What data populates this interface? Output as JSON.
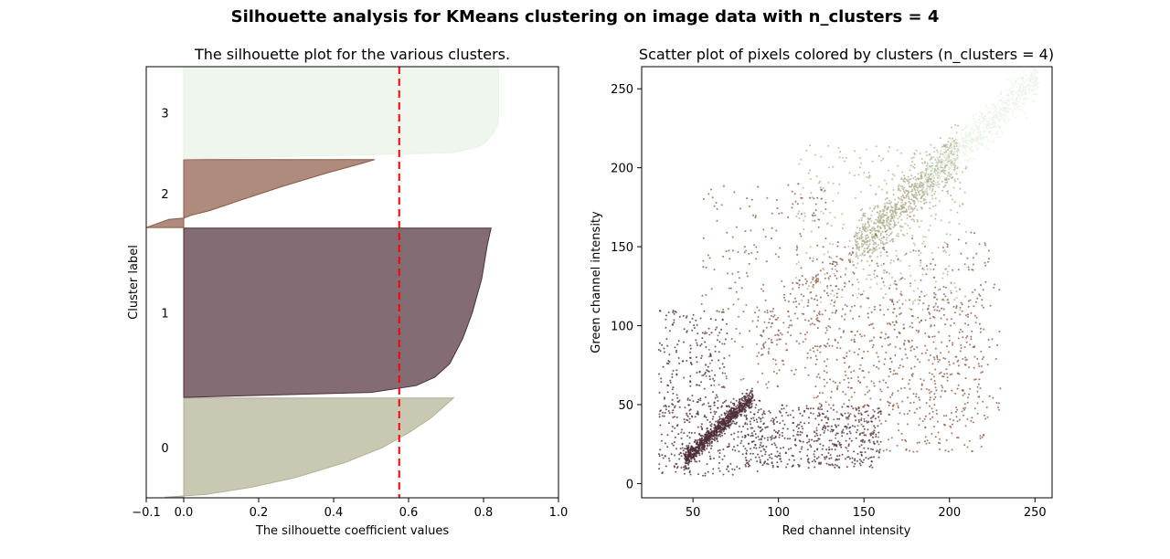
{
  "suptitle": "Silhouette analysis for KMeans clustering on image data with n_clusters = 4",
  "chart_data": [
    {
      "type": "area",
      "title": "The silhouette plot for the various clusters.",
      "xlabel": "The silhouette coefficient values",
      "ylabel": "Cluster label",
      "xlim": [
        -0.1,
        1.0
      ],
      "ylim": [
        0,
        8120
      ],
      "xticks": [
        -0.1,
        0.0,
        0.2,
        0.4,
        0.6,
        0.8,
        1.0
      ],
      "xtick_labels": [
        "−0.1",
        "0.0",
        "0.2",
        "0.4",
        "0.6",
        "0.8",
        "1.0"
      ],
      "clusters": [
        {
          "label": "0",
          "color": "#b1b193",
          "y_lower": 10,
          "y_upper": 1880,
          "profile": [
            [
              0,
              0.72
            ],
            [
              0.1,
              0.69
            ],
            [
              0.2,
              0.66
            ],
            [
              0.35,
              0.6
            ],
            [
              0.5,
              0.53
            ],
            [
              0.65,
              0.43
            ],
            [
              0.8,
              0.3
            ],
            [
              0.9,
              0.18
            ],
            [
              0.97,
              0.06
            ],
            [
              1,
              -0.05
            ]
          ]
        },
        {
          "label": "1",
          "color": "#4e2d39",
          "y_lower": 1890,
          "y_upper": 5080,
          "profile": [
            [
              0,
              0.82
            ],
            [
              0.1,
              0.81
            ],
            [
              0.3,
              0.795
            ],
            [
              0.5,
              0.77
            ],
            [
              0.65,
              0.745
            ],
            [
              0.8,
              0.71
            ],
            [
              0.88,
              0.67
            ],
            [
              0.93,
              0.62
            ],
            [
              0.97,
              0.5
            ],
            [
              1,
              0.0
            ]
          ]
        },
        {
          "label": "2",
          "color": "#8b5a45",
          "y_lower": 5090,
          "y_upper": 6370,
          "profile": [
            [
              0,
              0.51
            ],
            [
              0.05,
              0.48
            ],
            [
              0.2,
              0.38
            ],
            [
              0.4,
              0.26
            ],
            [
              0.6,
              0.15
            ],
            [
              0.75,
              0.07
            ],
            [
              0.82,
              0.02
            ],
            [
              0.86,
              0.0
            ],
            [
              0.88,
              -0.04
            ],
            [
              1,
              -0.1
            ]
          ]
        },
        {
          "label": "3",
          "color": "#e8f2e6",
          "y_lower": 6380,
          "y_upper": 8120,
          "profile": [
            [
              0,
              0.84
            ],
            [
              0.1,
              0.84
            ],
            [
              0.3,
              0.84
            ],
            [
              0.5,
              0.84
            ],
            [
              0.6,
              0.84
            ],
            [
              0.7,
              0.83
            ],
            [
              0.8,
              0.81
            ],
            [
              0.86,
              0.79
            ],
            [
              0.93,
              0.72
            ],
            [
              1,
              0.0
            ]
          ]
        }
      ],
      "silhouette_avg": 0.575,
      "avg_line_color": "#ff0000"
    },
    {
      "type": "scatter",
      "title": "Scatter plot of pixels colored by clusters (n_clusters = 4)",
      "xlabel": "Red channel intensity",
      "ylabel": "Green channel intensity",
      "xlim": [
        20,
        260
      ],
      "ylim": [
        -9,
        264
      ],
      "xticks": [
        50,
        100,
        150,
        200,
        250
      ],
      "yticks": [
        0,
        50,
        100,
        150,
        200,
        250
      ],
      "groups": [
        {
          "label": "0",
          "color": "#b1b193",
          "regions": [
            {
              "kind": "diag",
              "x": [
                145,
                205
              ],
              "offset": 5,
              "spread": 8,
              "n": 900
            },
            {
              "kind": "box",
              "x": [
                110,
                210
              ],
              "y": [
                110,
                215
              ],
              "n": 350
            }
          ]
        },
        {
          "label": "1",
          "color": "#4e2d39",
          "regions": [
            {
              "kind": "diag",
              "x": [
                45,
                85
              ],
              "offset": -30,
              "spread": 3,
              "n": 900
            },
            {
              "kind": "box",
              "x": [
                30,
                90
              ],
              "y": [
                5,
                55
              ],
              "n": 300
            },
            {
              "kind": "box",
              "x": [
                80,
                160
              ],
              "y": [
                10,
                50
              ],
              "n": 500
            },
            {
              "kind": "box",
              "x": [
                30,
                70
              ],
              "y": [
                40,
                110
              ],
              "n": 200
            }
          ]
        },
        {
          "label": "2",
          "color": "#8b5a45",
          "regions": [
            {
              "kind": "box",
              "x": [
                120,
                220
              ],
              "y": [
                20,
                120
              ],
              "n": 550
            },
            {
              "kind": "box",
              "x": [
                150,
                230
              ],
              "y": [
                40,
                160
              ],
              "n": 250
            },
            {
              "kind": "box",
              "x": [
                55,
                130
              ],
              "y": [
                60,
                190
              ],
              "n": 250
            },
            {
              "kind": "diag",
              "x": [
                85,
                145
              ],
              "offset": 0,
              "spread": 10,
              "n": 150
            }
          ]
        },
        {
          "label": "3",
          "color": "#e8f2e6",
          "regions": [
            {
              "kind": "diag",
              "x": [
                185,
                252
              ],
              "offset": 5,
              "spread": 6,
              "n": 800
            }
          ]
        }
      ]
    }
  ]
}
